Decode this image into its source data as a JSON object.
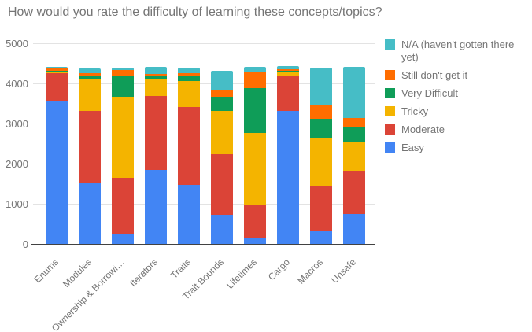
{
  "chart_data": {
    "type": "bar",
    "stacked": true,
    "title": "How would you rate the difficulty of learning these concepts/topics?",
    "categories": [
      "Enums",
      "Modules",
      "Ownership & Borrowi…",
      "Iterators",
      "Traits",
      "Trait Bounds",
      "Lifetimes",
      "Cargo",
      "Macros",
      "Unsafe"
    ],
    "series": [
      {
        "name": "Easy",
        "color": "#4285F4",
        "values": [
          3560,
          1520,
          250,
          1850,
          1470,
          730,
          130,
          3310,
          330,
          750
        ]
      },
      {
        "name": "Moderate",
        "color": "#DB4437",
        "values": [
          690,
          1790,
          1400,
          1840,
          1940,
          1500,
          850,
          890,
          1130,
          1080
        ]
      },
      {
        "name": "Tricky",
        "color": "#F4B400",
        "values": [
          50,
          810,
          2010,
          410,
          640,
          1080,
          1790,
          80,
          1180,
          720
        ]
      },
      {
        "name": "Very Difficult",
        "color": "#0F9D58",
        "values": [
          10,
          80,
          520,
          80,
          140,
          350,
          1110,
          30,
          480,
          370
        ]
      },
      {
        "name": "Still don't get it",
        "color": "#FF6D00",
        "values": [
          60,
          60,
          160,
          60,
          60,
          170,
          390,
          50,
          330,
          210
        ]
      },
      {
        "name": "N/A (haven't gotten there yet)",
        "color": "#46BDC6",
        "values": [
          50,
          120,
          60,
          170,
          150,
          480,
          140,
          75,
          950,
          1280
        ]
      }
    ],
    "xlabel": "",
    "ylabel": "",
    "ylim": [
      0,
      5000
    ],
    "y_ticks": [
      0,
      1000,
      2000,
      3000,
      4000,
      5000
    ],
    "grid": true,
    "legend_position": "right",
    "legend_order_top_to_bottom": [
      "N/A (haven't gotten there yet)",
      "Still don't get it",
      "Very Difficult",
      "Tricky",
      "Moderate",
      "Easy"
    ],
    "colors": {
      "title_text": "#757575",
      "axis_text": "#757575",
      "gridline": "#e3e3e3",
      "axis_line": "#424242",
      "background": "#ffffff"
    }
  }
}
